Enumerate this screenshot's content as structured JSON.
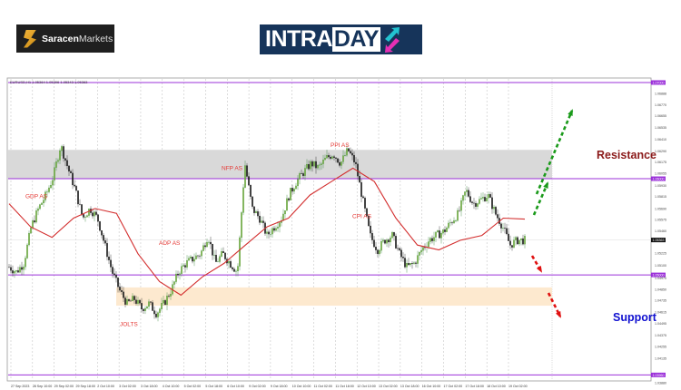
{
  "header": {
    "brand_bold": "Saracen",
    "brand_light": "Markets",
    "intraday_part1": "INTRA",
    "intraday_part2": "DAY"
  },
  "chart_info": "EURUSD,H1  1.05364 1.05396 1.05343 1.05363",
  "chart_data": {
    "type": "candlestick",
    "symbol": "EURUSD",
    "timeframe": "H1",
    "ylim": [
      1.0388,
      1.0703
    ],
    "grid": true,
    "x_tick_labels": [
      "27 Sep 2023",
      "28 Sep 10:00",
      "29 Sep 02:00",
      "29 Sep 18:00",
      "2 Oct 10:00",
      "3 Oct 02:00",
      "3 Oct 18:00",
      "4 Oct 10:00",
      "5 Oct 02:00",
      "5 Oct 18:00",
      "6 Oct 10:00",
      "9 Oct 02:00",
      "9 Oct 18:00",
      "10 Oct 10:00",
      "11 Oct 02:00",
      "11 Oct 18:00",
      "12 Oct 10:00",
      "13 Oct 02:00",
      "13 Oct 18:00",
      "16 Oct 10:00",
      "17 Oct 02:00",
      "17 Oct 18:00",
      "18 Oct 10:00",
      "19 Oct 02:00"
    ],
    "y_tick_labels": [
      "1.06888",
      "1.06770",
      "1.06655",
      "1.06535",
      "1.06410",
      "1.06290",
      "1.06175",
      "1.06055",
      "1.05930",
      "1.05815",
      "1.05690",
      "1.05575",
      "1.05460",
      "1.05225",
      "1.05100",
      "1.04970",
      "1.04850",
      "1.04735",
      "1.04615",
      "1.04495",
      "1.04375",
      "1.04255",
      "1.04135",
      "1.03880"
    ],
    "close_prices": [
      1.0508,
      1.0503,
      1.0512,
      1.055,
      1.0569,
      1.0583,
      1.0602,
      1.0635,
      1.0611,
      1.0588,
      1.0559,
      1.0569,
      1.0559,
      1.0531,
      1.0503,
      1.0484,
      1.047,
      1.0475,
      1.0465,
      1.047,
      1.046,
      1.047,
      1.0484,
      1.0503,
      1.0512,
      1.0517,
      1.0522,
      1.0541,
      1.0512,
      1.0522,
      1.0512,
      1.0503,
      1.0616,
      1.0569,
      1.0559,
      1.0541,
      1.055,
      1.0559,
      1.0583,
      1.0597,
      1.0607,
      1.0616,
      1.0611,
      1.0621,
      1.0626,
      1.0616,
      1.063,
      1.0616,
      1.0578,
      1.0541,
      1.0526,
      1.0536,
      1.0541,
      1.0522,
      1.0508,
      1.0512,
      1.0526,
      1.0536,
      1.0541,
      1.0545,
      1.0555,
      1.0564,
      1.0588,
      1.0574,
      1.0578,
      1.0583,
      1.0564,
      1.055,
      1.0531,
      1.0536,
      1.0536
    ],
    "moving_average": [
      1.0574,
      1.055,
      1.0539,
      1.0559,
      1.0569,
      1.0564,
      1.0522,
      1.0493,
      1.0479,
      1.0498,
      1.0512,
      1.0531,
      1.055,
      1.0559,
      1.0583,
      1.0597,
      1.0611,
      1.0597,
      1.0559,
      1.0531,
      1.0526,
      1.0536,
      1.0541,
      1.0559,
      1.0558
    ],
    "horizontal_levels": [
      {
        "price": 1.07,
        "label": "1.07000"
      },
      {
        "price": 1.06,
        "label": "1.06000"
      },
      {
        "price": 1.05,
        "label": "1.05000"
      },
      {
        "price": 1.0396,
        "label": "1.03960"
      }
    ],
    "current_price": {
      "price": 1.05363,
      "label": "1.05363"
    },
    "zones": [
      {
        "name": "resistance-zone",
        "from": 1.06,
        "to": 1.063,
        "color": "#d9d9d9"
      },
      {
        "name": "support-zone",
        "from": 1.0468,
        "to": 1.0487,
        "color": "#fde9cf"
      }
    ],
    "annotations": [
      {
        "text": "GDP AS",
        "price": 1.058
      },
      {
        "text": "NFP AS",
        "price": 1.0609
      },
      {
        "text": "PPI AS",
        "price": 1.0633
      },
      {
        "text": "CPI AS",
        "price": 1.0559
      },
      {
        "text": "ADP AS",
        "price": 1.0531
      },
      {
        "text": "JOLTS",
        "price": 1.0447
      }
    ],
    "labels": {
      "resistance": "Resistance",
      "support": "Support"
    },
    "colors": {
      "up_candle": "#2e7d32",
      "down_candle": "#1a1a1a",
      "ma": "#d32f2f",
      "level": "#9b30d9",
      "annotation": "#e53935",
      "resistance": "#8b1a1a",
      "support": "#1010d0",
      "bull_arrow": "#1a9a1a",
      "bear_arrow": "#e01010"
    }
  }
}
